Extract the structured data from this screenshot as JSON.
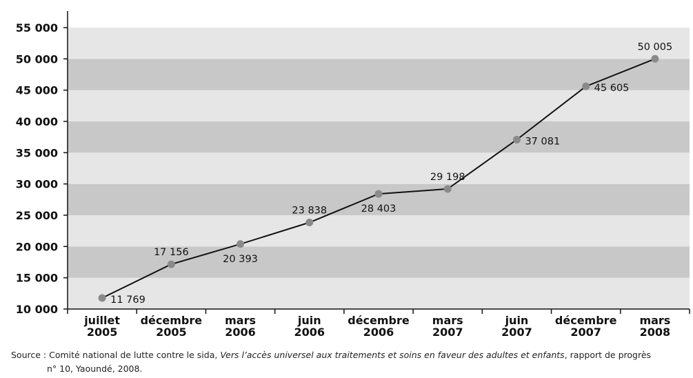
{
  "chart_data": {
    "type": "line",
    "title": "",
    "xlabel": "",
    "ylabel": "",
    "ylim": [
      10000,
      55000
    ],
    "yticks": [
      "10 000",
      "15 000",
      "20 000",
      "25 000",
      "30 000",
      "35 000",
      "40 000",
      "45 000",
      "50 000",
      "55 000"
    ],
    "categories": [
      [
        "juillet",
        "2005"
      ],
      [
        "décembre",
        "2005"
      ],
      [
        "mars",
        "2006"
      ],
      [
        "juin",
        "2006"
      ],
      [
        "décembre",
        "2006"
      ],
      [
        "mars",
        "2007"
      ],
      [
        "juin",
        "2007"
      ],
      [
        "décembre",
        "2007"
      ],
      [
        "mars",
        "2008"
      ]
    ],
    "values": [
      11769,
      17156,
      20393,
      23838,
      28403,
      29198,
      37081,
      45605,
      50005
    ],
    "data_labels": [
      "11 769",
      "17 156",
      "20 393",
      "23 838",
      "28 403",
      "29 198",
      "37 081",
      "45 605",
      "50 005"
    ],
    "grid": "alternating horizontal bands",
    "colors": {
      "line": "#111111",
      "marker": "#8a8a8a",
      "band_light": "#e6e6e6",
      "band_dark": "#c8c8c8"
    }
  },
  "source": {
    "prefix": "Source : Comité national de lutte contre le sida, ",
    "italic": "Vers l’accès universel aux traitements et soins en faveur des adultes et enfants",
    "suffix": ", rapport de progrès",
    "line2": "n° 10, Yaoundé, 2008."
  }
}
